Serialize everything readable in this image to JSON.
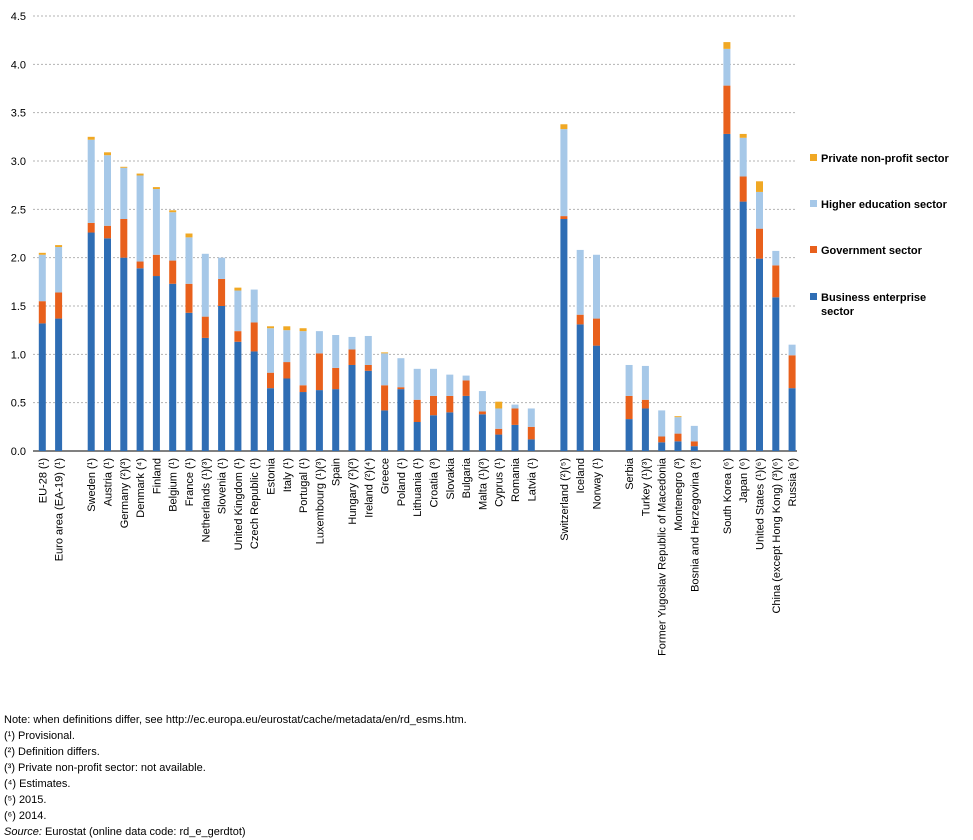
{
  "chart_data": {
    "type": "stacked-bar",
    "ylim": [
      0,
      4.5
    ],
    "yticks": [
      "0.0",
      "0.5",
      "1.0",
      "1.5",
      "2.0",
      "2.5",
      "3.0",
      "3.5",
      "4.0",
      "4.5"
    ],
    "grid": true,
    "legend_position": "right",
    "groups": [
      [
        0,
        1
      ],
      [
        2,
        3,
        4,
        5,
        6,
        7,
        8,
        9,
        10,
        11,
        12,
        13,
        14,
        15,
        16,
        17,
        18,
        19,
        20,
        21,
        22,
        23,
        24,
        25,
        26,
        27,
        28,
        29
      ],
      [
        30,
        31,
        32
      ],
      [
        33,
        34,
        35,
        36,
        37
      ],
      [
        38,
        39,
        40,
        41,
        42
      ]
    ],
    "categories": [
      "EU-28 (¹)",
      "Euro area (EA-19) (¹)",
      "Sweden (¹)",
      "Austria (¹)",
      "Germany (²)(³)",
      "Denmark (⁴)",
      "Finland",
      "Belgium (¹)",
      "France (¹)",
      "Netherlands (¹)(³)",
      "Slovenia (¹)",
      "United Kingdom (¹)",
      "Czech Republic (¹)",
      "Estonia",
      "Italy (¹)",
      "Portugal (¹)",
      "Luxembourg (¹)(³)",
      "Spain",
      "Hungary (²)(³)",
      "Ireland (²)(⁴)",
      "Greece",
      "Poland (¹)",
      "Lithuania (¹)",
      "Croatia (³)",
      "Slovakia",
      "Bulgaria",
      "Malta (¹)(³)",
      "Cyprus (¹)",
      "Romania",
      "Latvia (¹)",
      "Switzerland (²)(⁵)",
      "Iceland",
      "Norway (¹)",
      "Serbia",
      "Turkey (¹)(³)",
      "Former Yugoslav Republic of Macedonia",
      "Montenegro (³)",
      "Bosnia and Herzegovina (³)",
      "South Korea (⁶)",
      "Japan (⁶)",
      "United States (¹)(⁶)",
      "China (except Hong Kong) (³)(⁶)",
      "Russia (⁶)"
    ],
    "series": [
      {
        "name": "Business enterprise sector",
        "color": "#2e6db4",
        "values": [
          1.32,
          1.37,
          2.26,
          2.2,
          2.0,
          1.89,
          1.81,
          1.73,
          1.43,
          1.17,
          1.5,
          1.13,
          1.03,
          0.65,
          0.75,
          0.61,
          0.63,
          0.64,
          0.89,
          0.83,
          0.42,
          0.64,
          0.3,
          0.37,
          0.4,
          0.57,
          0.38,
          0.17,
          0.27,
          0.12,
          2.4,
          1.31,
          1.09,
          0.33,
          0.44,
          0.09,
          0.1,
          0.05,
          3.28,
          2.58,
          1.99,
          1.59,
          0.65
        ]
      },
      {
        "name": "Government sector",
        "color": "#e8601c",
        "values": [
          0.23,
          0.27,
          0.1,
          0.13,
          0.4,
          0.07,
          0.22,
          0.24,
          0.3,
          0.22,
          0.28,
          0.11,
          0.3,
          0.16,
          0.17,
          0.07,
          0.38,
          0.22,
          0.16,
          0.06,
          0.26,
          0.02,
          0.23,
          0.2,
          0.17,
          0.16,
          0.03,
          0.06,
          0.17,
          0.13,
          0.03,
          0.1,
          0.28,
          0.24,
          0.09,
          0.06,
          0.08,
          0.05,
          0.5,
          0.26,
          0.31,
          0.33,
          0.34
        ]
      },
      {
        "name": "Higher education sector",
        "color": "#a6c8e8",
        "values": [
          0.48,
          0.47,
          0.86,
          0.73,
          0.53,
          0.89,
          0.68,
          0.5,
          0.48,
          0.65,
          0.22,
          0.42,
          0.34,
          0.46,
          0.33,
          0.56,
          0.23,
          0.34,
          0.13,
          0.3,
          0.33,
          0.3,
          0.32,
          0.28,
          0.22,
          0.05,
          0.21,
          0.21,
          0.04,
          0.19,
          0.9,
          0.67,
          0.66,
          0.32,
          0.35,
          0.27,
          0.17,
          0.16,
          0.38,
          0.4,
          0.38,
          0.15,
          0.11
        ]
      },
      {
        "name": "Private non-profit sector",
        "color": "#f0a824",
        "values": [
          0.02,
          0.02,
          0.03,
          0.03,
          0.01,
          0.02,
          0.02,
          0.02,
          0.04,
          0.0,
          0.0,
          0.03,
          0.0,
          0.02,
          0.04,
          0.03,
          0.0,
          0.0,
          0.0,
          0.0,
          0.01,
          0.0,
          0.0,
          0.0,
          0.0,
          0.0,
          0.0,
          0.07,
          0.0,
          0.0,
          0.05,
          0.0,
          0.0,
          0.0,
          0.0,
          0.0,
          0.01,
          0.0,
          0.07,
          0.04,
          0.11,
          0.0,
          0.0
        ]
      }
    ],
    "legend": [
      "Private non-profit sector",
      "Higher education sector",
      "Government sector",
      "Business enterprise sector"
    ]
  },
  "notes": {
    "note": "Note: when definitions differ, see http://ec.europa.eu/eurostat/cache/metadata/en/rd_esms.htm.",
    "footnotes": [
      "(¹) Provisional.",
      "(²) Definition differs.",
      "(³) Private non-profit sector: not available.",
      "(⁴) Estimates.",
      "(⁵) 2015.",
      "(⁶) 2014."
    ],
    "source_label": "Source:",
    "source_text": "Eurostat (online data code: rd_e_gerdtot)"
  }
}
